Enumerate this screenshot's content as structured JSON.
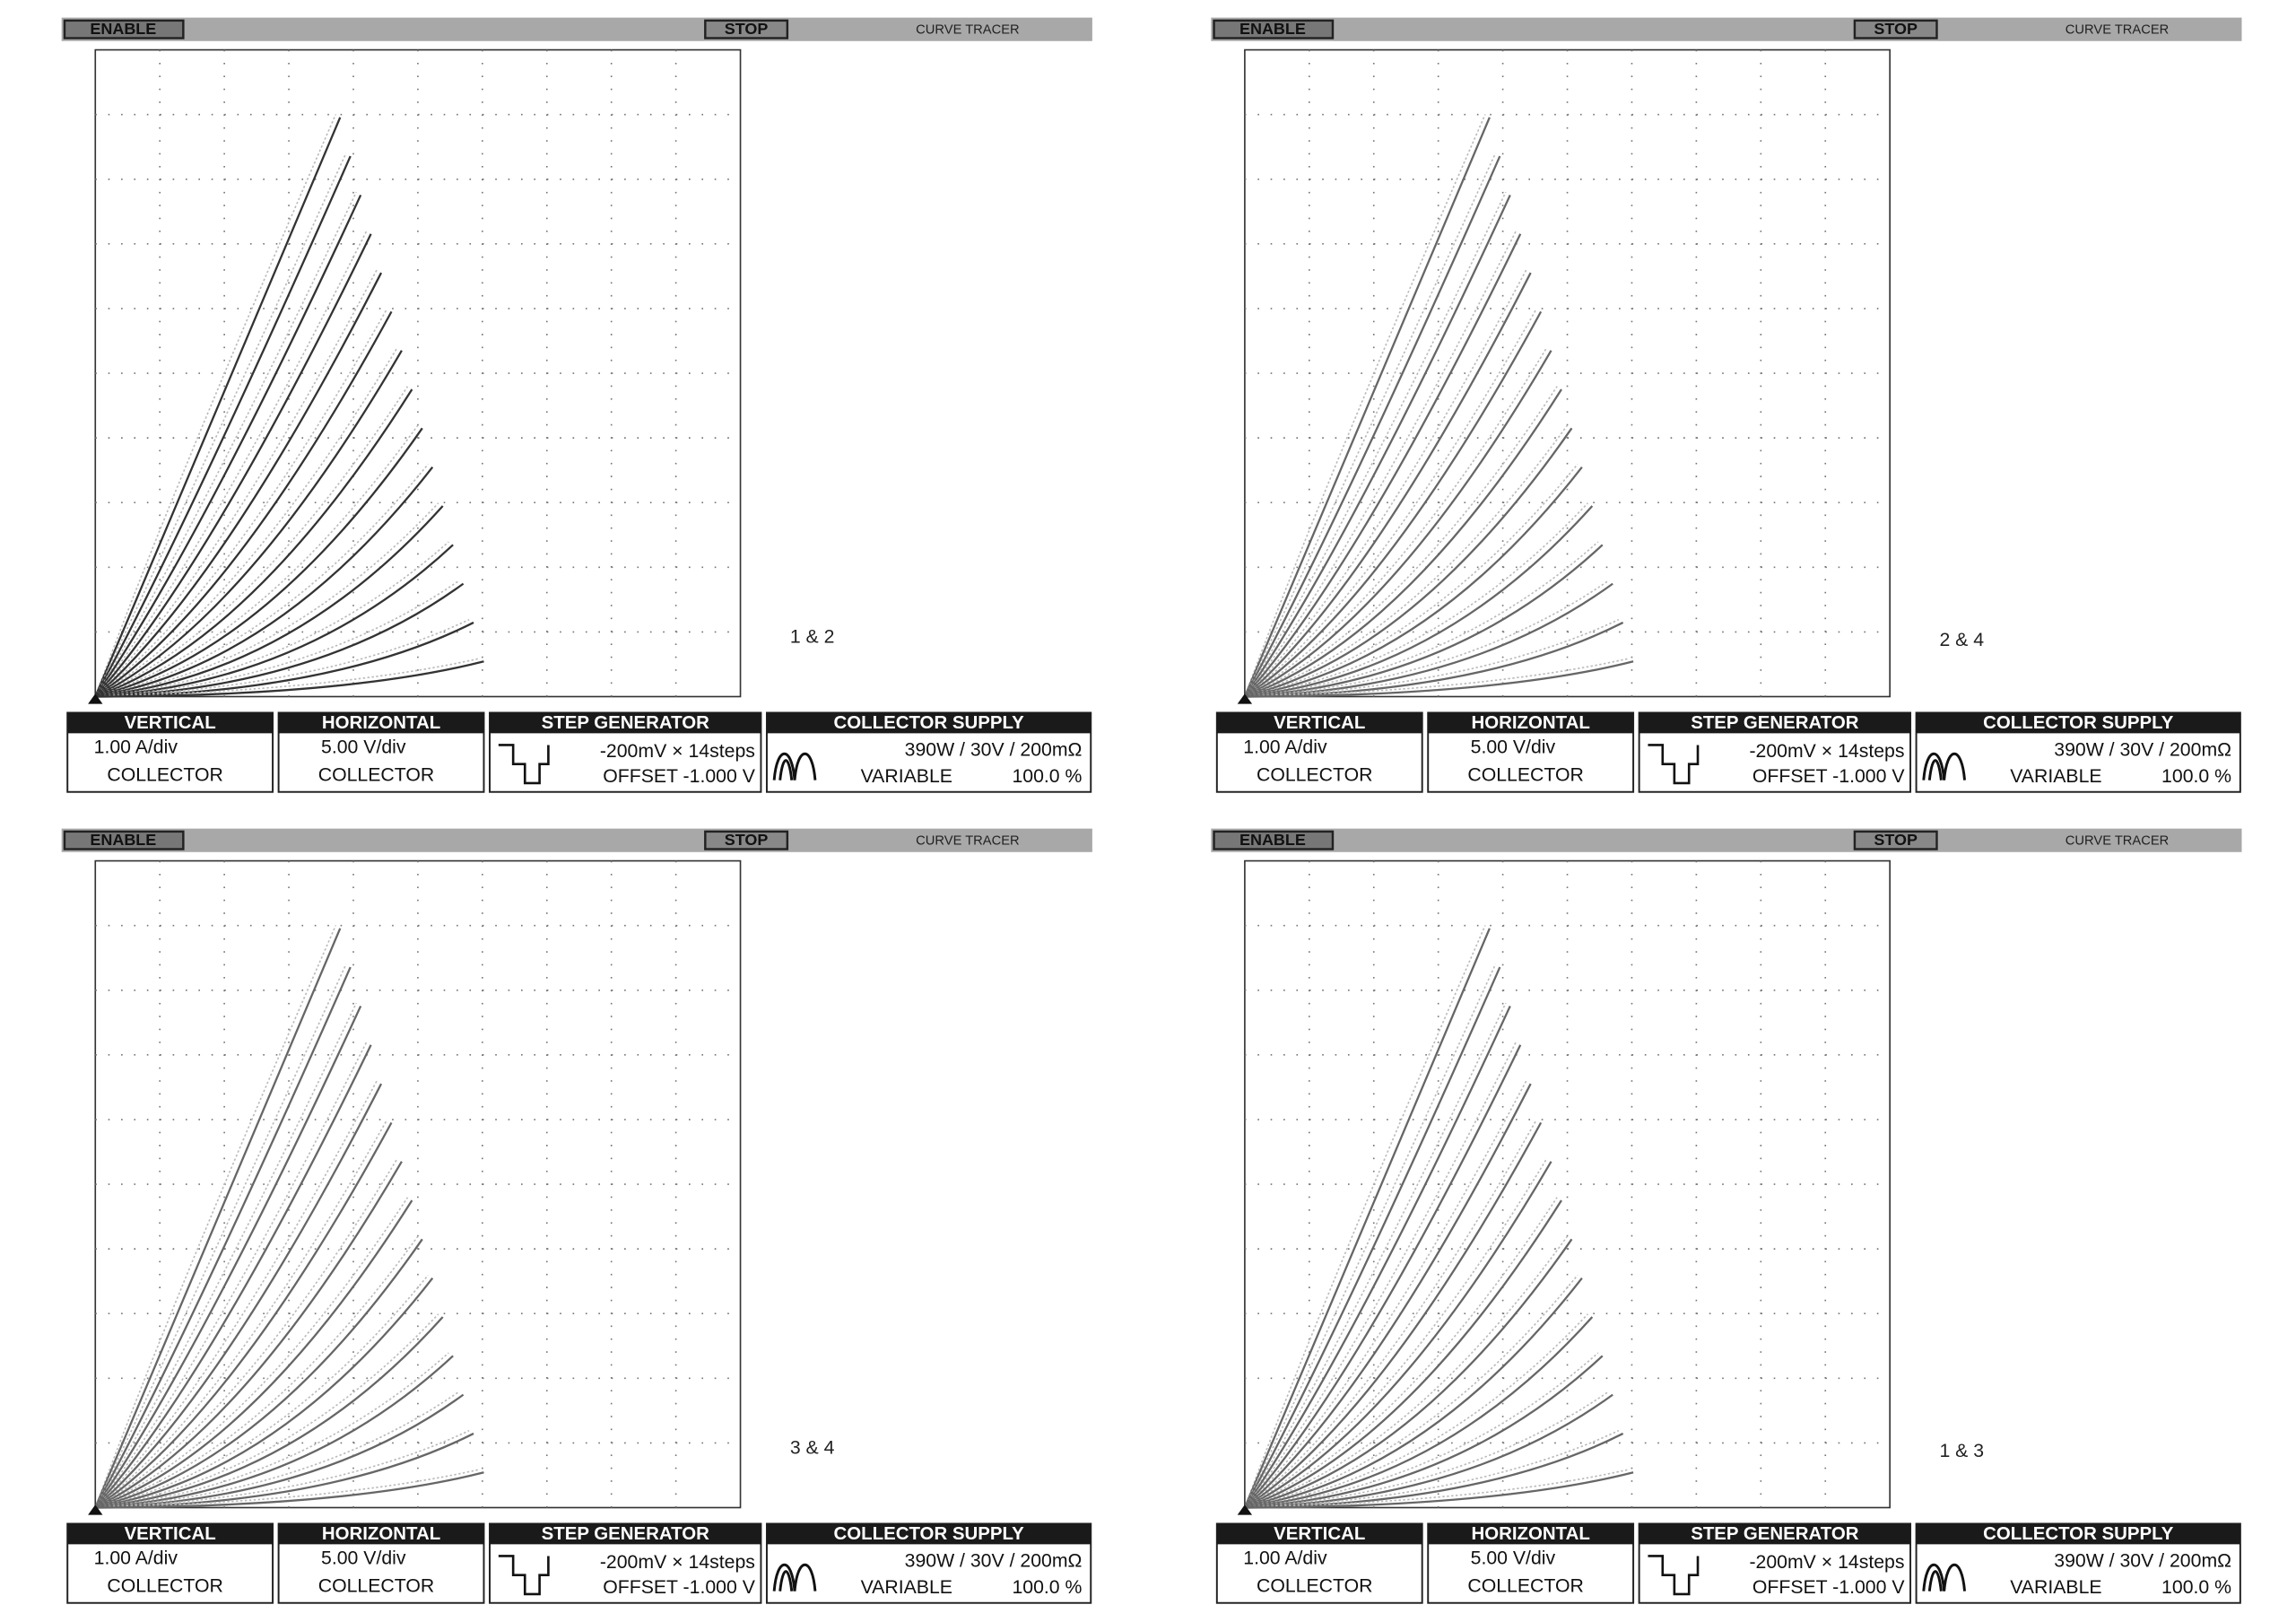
{
  "panels": [
    {
      "header": {
        "enable": "ENABLE",
        "stop": "STOP",
        "title": "CURVE TRACER"
      },
      "label": "1 & 2",
      "readout": {
        "vertical": {
          "title": "VERTICAL",
          "scale": "1.00 A/div",
          "source": "COLLECTOR"
        },
        "horizontal": {
          "title": "HORIZONTAL",
          "scale": "5.00 V/div",
          "source": "COLLECTOR"
        },
        "step": {
          "title": "STEP GENERATOR",
          "step": "-200mV × 14steps",
          "offset": "OFFSET -1.000 V"
        },
        "supply": {
          "title": "COLLECTOR SUPPLY",
          "rating": "390W / 30V / 200mΩ",
          "mode": "VARIABLE",
          "percent": "100.0 %"
        }
      }
    },
    {
      "header": {
        "enable": "ENABLE",
        "stop": "STOP",
        "title": "CURVE TRACER"
      },
      "label": "2 & 4",
      "readout": {
        "vertical": {
          "title": "VERTICAL",
          "scale": "1.00 A/div",
          "source": "COLLECTOR"
        },
        "horizontal": {
          "title": "HORIZONTAL",
          "scale": "5.00 V/div",
          "source": "COLLECTOR"
        },
        "step": {
          "title": "STEP GENERATOR",
          "step": "-200mV × 14steps",
          "offset": "OFFSET -1.000 V"
        },
        "supply": {
          "title": "COLLECTOR SUPPLY",
          "rating": "390W / 30V / 200mΩ",
          "mode": "VARIABLE",
          "percent": "100.0 %"
        }
      }
    },
    {
      "header": {
        "enable": "ENABLE",
        "stop": "STOP",
        "title": "CURVE TRACER"
      },
      "label": "3 & 4",
      "readout": {
        "vertical": {
          "title": "VERTICAL",
          "scale": "1.00 A/div",
          "source": "COLLECTOR"
        },
        "horizontal": {
          "title": "HORIZONTAL",
          "scale": "5.00 V/div",
          "source": "COLLECTOR"
        },
        "step": {
          "title": "STEP GENERATOR",
          "step": "-200mV × 14steps",
          "offset": "OFFSET -1.000 V"
        },
        "supply": {
          "title": "COLLECTOR SUPPLY",
          "rating": "390W / 30V / 200mΩ",
          "mode": "VARIABLE",
          "percent": "100.0 %"
        }
      }
    },
    {
      "header": {
        "enable": "ENABLE",
        "stop": "STOP",
        "title": "CURVE TRACER"
      },
      "label": "1 & 3",
      "readout": {
        "vertical": {
          "title": "VERTICAL",
          "scale": "1.00 A/div",
          "source": "COLLECTOR"
        },
        "horizontal": {
          "title": "HORIZONTAL",
          "scale": "5.00 V/div",
          "source": "COLLECTOR"
        },
        "step": {
          "title": "STEP GENERATOR",
          "step": "-200mV × 14steps",
          "offset": "OFFSET -1.000 V"
        },
        "supply": {
          "title": "COLLECTOR SUPPLY",
          "rating": "390W / 30V / 200mΩ",
          "mode": "VARIABLE",
          "percent": "100.0 %"
        }
      }
    }
  ]
}
